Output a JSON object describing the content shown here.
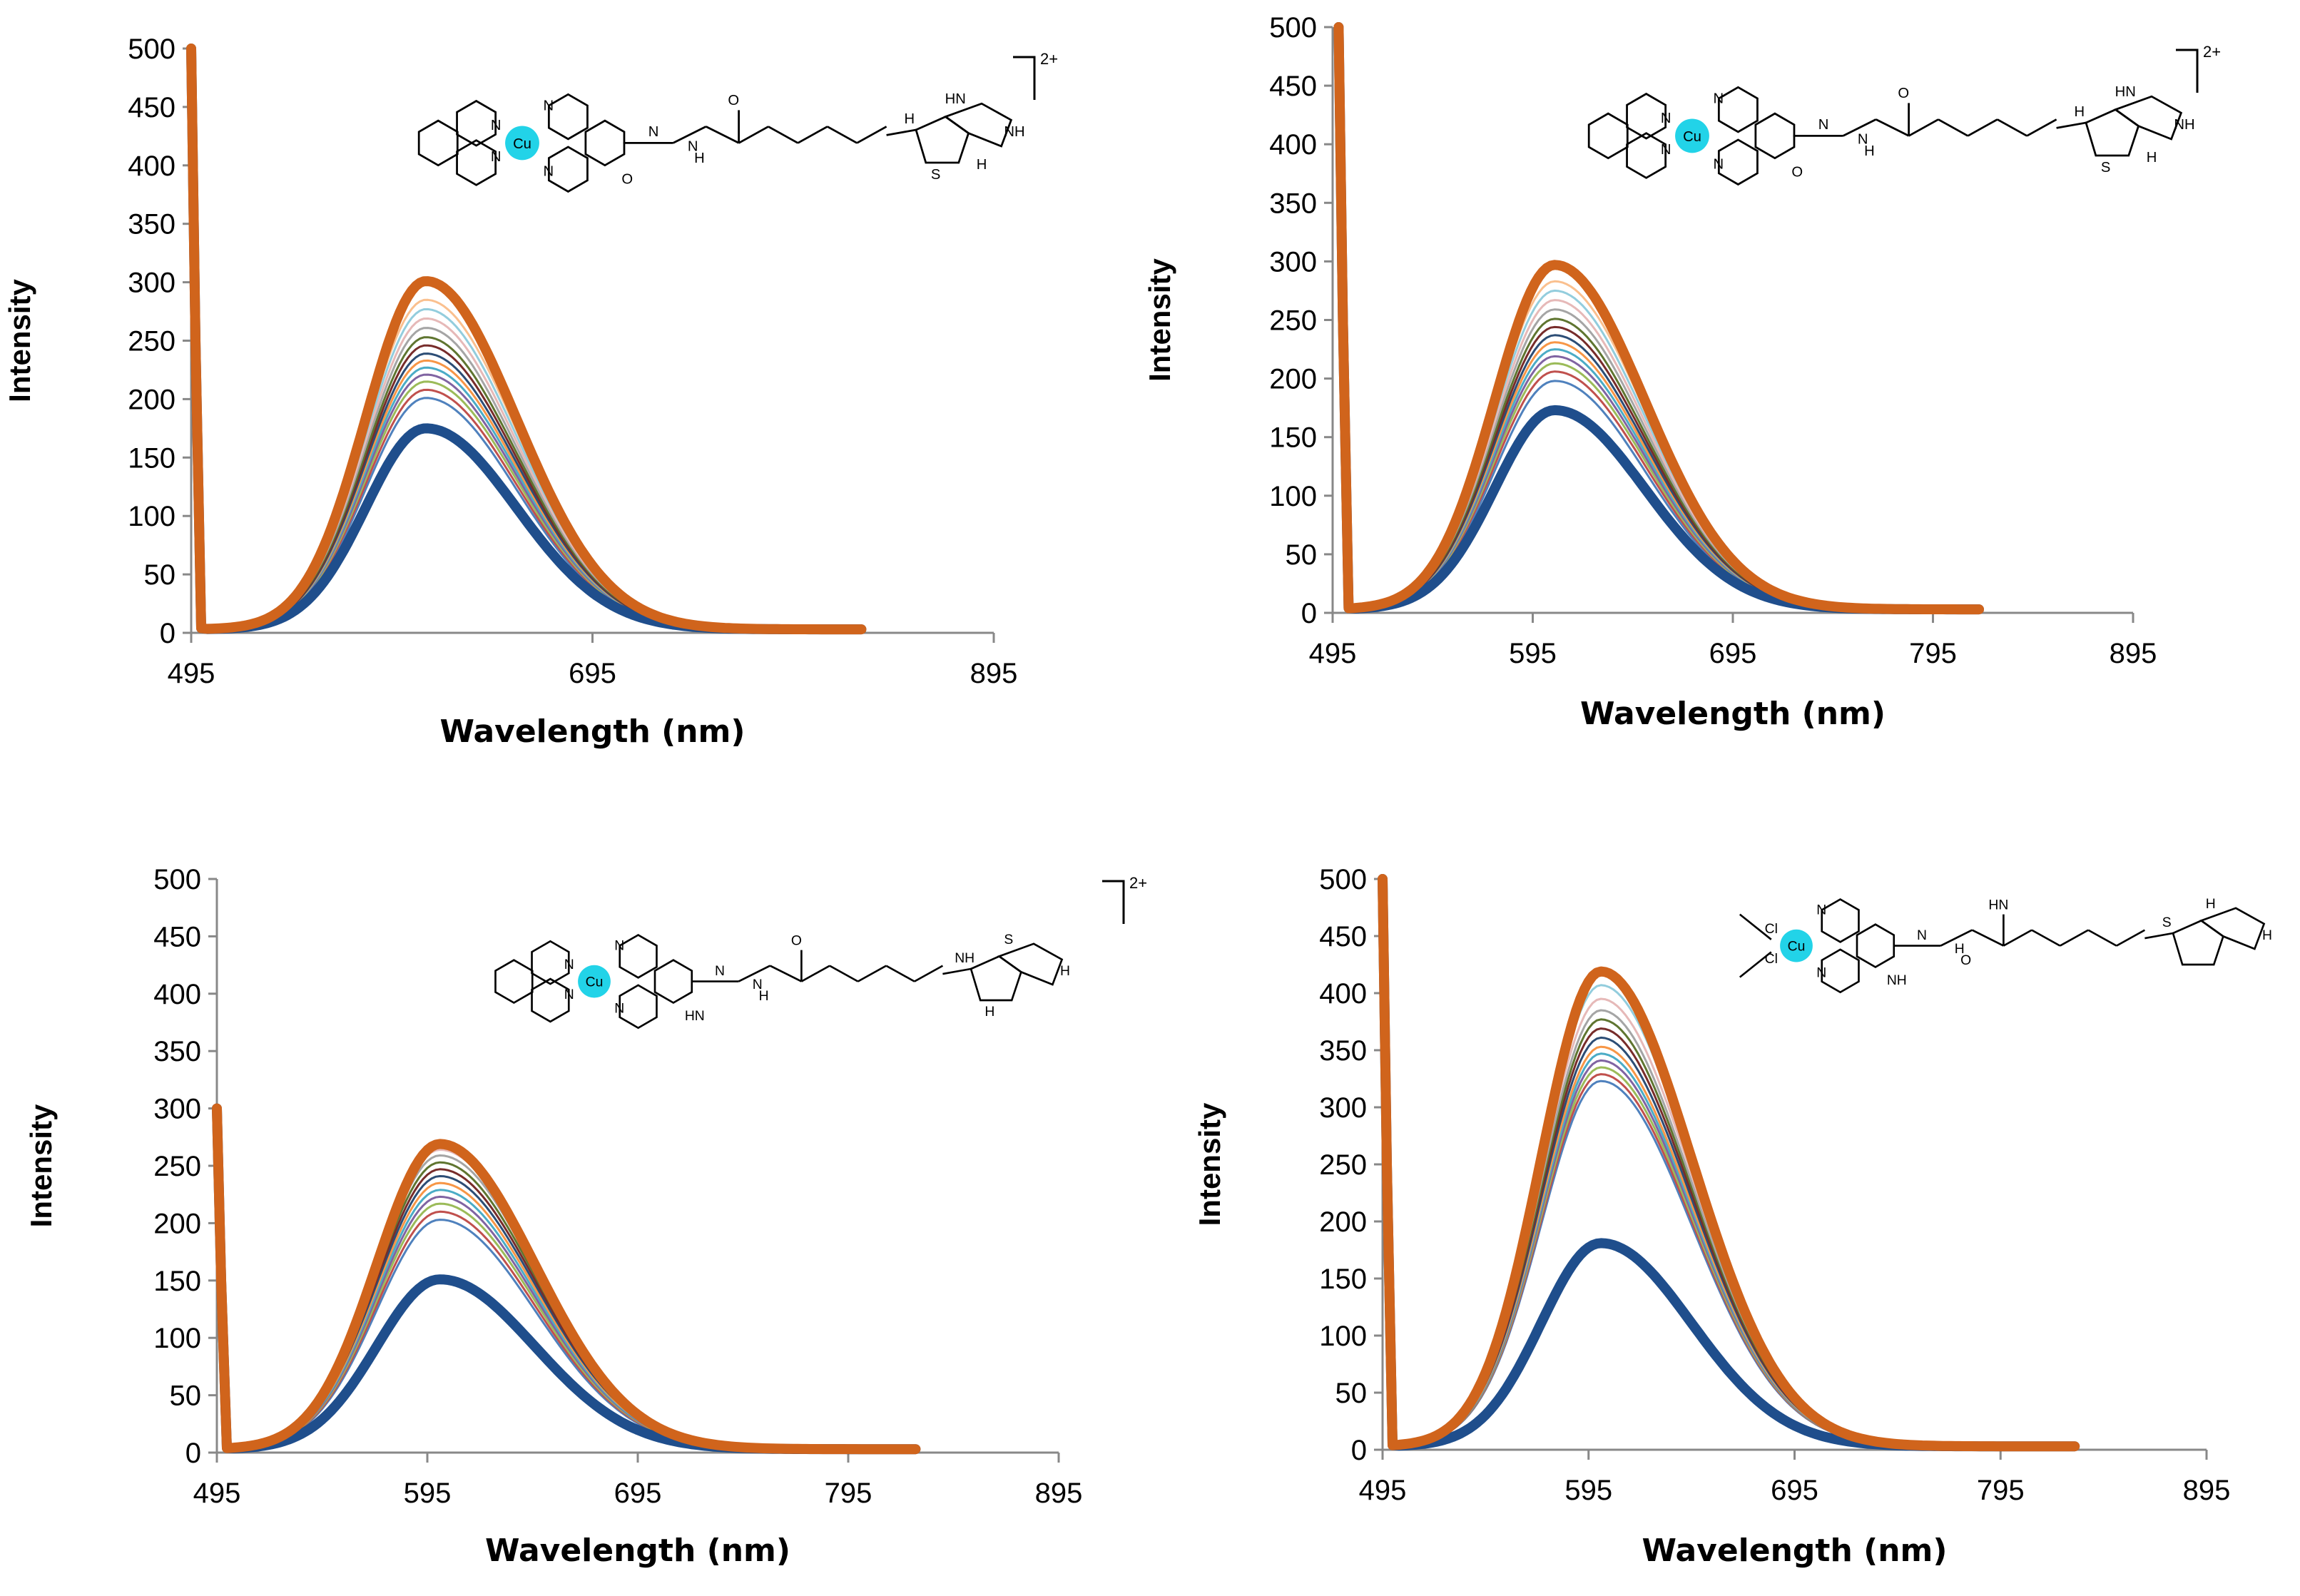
{
  "colors": {
    "bold_low": "#1f4e8c",
    "bold_high": "#d0641c",
    "thin": [
      "#4f81bd",
      "#c0504d",
      "#9bbb59",
      "#8064a2",
      "#4bacc6",
      "#f79646",
      "#2c4d75",
      "#772c2a",
      "#5f7530",
      "#a5a5a5",
      "#e6b9b8",
      "#93cddd",
      "#fac08f",
      "#b3a2c7"
    ],
    "metal_highlight": "#22d3e8"
  },
  "chart_data": [
    {
      "type": "line",
      "panel": "top-left",
      "xlabel": "Wavelength (nm)",
      "ylabel": "Intensity",
      "xlim": [
        495,
        895
      ],
      "ylim": [
        0,
        500
      ],
      "xticks": [
        "495",
        "695",
        "895"
      ],
      "yticks": [
        "0",
        "50",
        "100",
        "150",
        "200",
        "250",
        "300",
        "350",
        "400",
        "450",
        "500"
      ],
      "peak_nm": 612,
      "sigma_left": 30,
      "sigma_right": 45,
      "x_end": 830,
      "excitation_spike_nm": 495,
      "spike_top": 500,
      "series_peaks": [
        172,
        198,
        205,
        212,
        218,
        224,
        230,
        236,
        243,
        250,
        258,
        266,
        274,
        282,
        298
      ],
      "structure": {
        "metal": "Cu",
        "charge": "2+",
        "atoms": [
          "N",
          "N",
          "N",
          "N",
          "N",
          "N",
          "H",
          "O",
          "O",
          "H",
          "HN",
          "NH",
          "S",
          "H"
        ]
      }
    },
    {
      "type": "line",
      "panel": "top-right",
      "xlabel": "Wavelength (nm)",
      "ylabel": "Intensity",
      "xlim": [
        495,
        895
      ],
      "ylim": [
        0,
        500
      ],
      "xticks": [
        "495",
        "595",
        "695",
        "795",
        "895"
      ],
      "yticks": [
        "0",
        "50",
        "100",
        "150",
        "200",
        "250",
        "300",
        "350",
        "400",
        "450",
        "500"
      ],
      "peak_nm": 606,
      "sigma_left": 30,
      "sigma_right": 45,
      "x_end": 818,
      "excitation_spike_nm": 498,
      "spike_top": 500,
      "series_peaks": [
        170,
        195,
        203,
        210,
        216,
        222,
        228,
        234,
        241,
        248,
        256,
        264,
        272,
        280,
        294
      ],
      "structure": {
        "metal": "Cu",
        "charge": "2+",
        "atoms": [
          "N",
          "N",
          "N",
          "N",
          "N",
          "N",
          "H",
          "O",
          "O",
          "H",
          "HN",
          "NH",
          "S",
          "H"
        ]
      }
    },
    {
      "type": "line",
      "panel": "bottom-left",
      "xlabel": "Wavelength (nm)",
      "ylabel": "Intensity",
      "xlim": [
        495,
        895
      ],
      "ylim": [
        0,
        500
      ],
      "xticks": [
        "495",
        "595",
        "695",
        "795",
        "895"
      ],
      "yticks": [
        "0",
        "50",
        "100",
        "150",
        "200",
        "250",
        "300",
        "350",
        "400",
        "450",
        "500"
      ],
      "peak_nm": 601,
      "sigma_left": 30,
      "sigma_right": 45,
      "x_end": 828,
      "excitation_spike_nm": 495,
      "spike_top": 300,
      "series_peaks": [
        148,
        200,
        207,
        214,
        220,
        226,
        232,
        238,
        244,
        250,
        256,
        261,
        266
      ],
      "structure": {
        "metal": "Cu",
        "charge": "2+",
        "atoms": [
          "N",
          "N",
          "N",
          "N",
          "N",
          "N",
          "H",
          "O",
          "HN",
          "NH",
          "S",
          "H",
          "H"
        ]
      }
    },
    {
      "type": "line",
      "panel": "bottom-right",
      "xlabel": "Wavelength (nm)",
      "ylabel": "Intensity",
      "xlim": [
        495,
        895
      ],
      "ylim": [
        0,
        500
      ],
      "xticks": [
        "495",
        "595",
        "695",
        "795",
        "895"
      ],
      "yticks": [
        "0",
        "50",
        "100",
        "150",
        "200",
        "250",
        "300",
        "350",
        "400",
        "450",
        "500"
      ],
      "peak_nm": 601,
      "sigma_left": 29,
      "sigma_right": 44,
      "x_end": 832,
      "excitation_spike_nm": 495,
      "spike_top": 500,
      "series_peaks": [
        178,
        320,
        326,
        332,
        338,
        344,
        350,
        358,
        366,
        374,
        382,
        392,
        404,
        416
      ],
      "structure": {
        "metal": "Cu",
        "charge": "",
        "atoms": [
          "Cl",
          "Cl",
          "N",
          "N",
          "N",
          "H",
          "O",
          "HN",
          "NH",
          "S",
          "H",
          "H"
        ]
      }
    }
  ]
}
